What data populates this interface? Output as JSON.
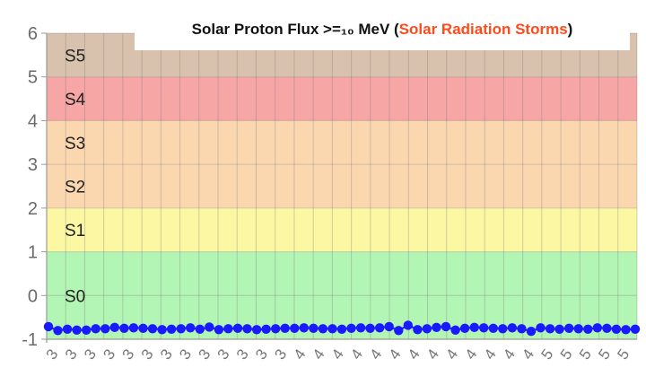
{
  "chart_data": {
    "type": "scatter",
    "title": {
      "prefix": "Solar Proton Flux >=₁₀ MeV (",
      "accent": "Solar Radiation Storms",
      "suffix": ")",
      "accent_color": "#ff4a1c"
    },
    "ylim": [
      -1,
      6
    ],
    "yticks": [
      6,
      5,
      4,
      3,
      2,
      1,
      0,
      -1
    ],
    "x_tick_labels": [
      "3",
      "3",
      "3",
      "3",
      "3",
      "3",
      "3",
      "3",
      "3",
      "3",
      "3",
      "3",
      "3",
      "4",
      "4",
      "4",
      "4",
      "4",
      "4",
      "4",
      "4",
      "4",
      "4",
      "4",
      "4",
      "4",
      "5",
      "5",
      "5",
      "5",
      "5"
    ],
    "grid": true,
    "bands": [
      {
        "label": "S5",
        "from": 5,
        "to": 6,
        "color": "#d9c2ad"
      },
      {
        "label": "S4",
        "from": 4,
        "to": 5,
        "color": "#f7a6a6"
      },
      {
        "label": "S3",
        "from": 3,
        "to": 4,
        "color": "#fbd7b0"
      },
      {
        "label": "S2",
        "from": 2,
        "to": 3,
        "color": "#fbd7b0"
      },
      {
        "label": "S1",
        "from": 1,
        "to": 2,
        "color": "#fbf7a3"
      },
      {
        "label": "S0",
        "from": -1,
        "to": 1,
        "color": "#b3f5b4"
      }
    ],
    "band_label_values": [
      5.5,
      4.5,
      3.5,
      2.5,
      1.5,
      0.0
    ],
    "series": [
      {
        "color": "#1a1aff",
        "values": [
          -0.71,
          -0.8,
          -0.77,
          -0.79,
          -0.79,
          -0.76,
          -0.76,
          -0.73,
          -0.75,
          -0.74,
          -0.75,
          -0.76,
          -0.78,
          -0.77,
          -0.76,
          -0.74,
          -0.77,
          -0.72,
          -0.78,
          -0.76,
          -0.75,
          -0.76,
          -0.78,
          -0.77,
          -0.76,
          -0.75,
          -0.75,
          -0.74,
          -0.75,
          -0.76,
          -0.76,
          -0.77,
          -0.75,
          -0.74,
          -0.75,
          -0.74,
          -0.71,
          -0.8,
          -0.68,
          -0.78,
          -0.76,
          -0.73,
          -0.71,
          -0.79,
          -0.75,
          -0.73,
          -0.74,
          -0.75,
          -0.76,
          -0.74,
          -0.76,
          -0.82,
          -0.74,
          -0.76,
          -0.77,
          -0.75,
          -0.76,
          -0.77,
          -0.74,
          -0.75,
          -0.77,
          -0.78,
          -0.77
        ]
      }
    ]
  }
}
